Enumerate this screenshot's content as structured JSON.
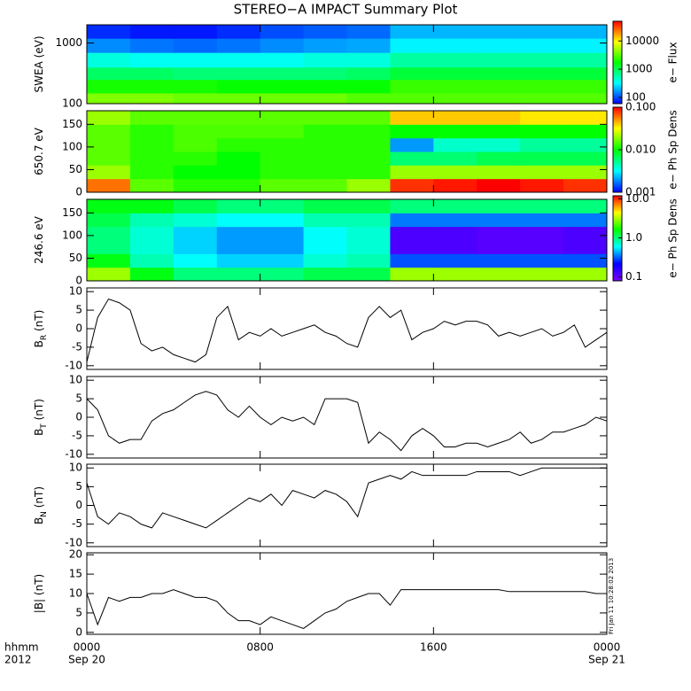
{
  "title": "STEREO−A IMPACT Summary Plot",
  "timestamp": "Fri Jan 11 10:28:02 2013",
  "x_axis": {
    "xlim": [
      0,
      24
    ],
    "xticks": [
      {
        "value": 0,
        "label": "0000"
      },
      {
        "value": 8,
        "label": "0800"
      },
      {
        "value": 16,
        "label": "1600"
      },
      {
        "value": 24,
        "label": "0000"
      }
    ],
    "dates": [
      {
        "value": 0,
        "label": "Sep 20"
      },
      {
        "value": 24,
        "label": "Sep 21"
      }
    ],
    "unit_label": "hhmm",
    "year": "2012"
  },
  "chart_data": [
    {
      "type": "heatmap",
      "y_label": [
        "SWEA (eV)"
      ],
      "log_y": true,
      "ylim": [
        100,
        2000
      ],
      "yticks": [
        100,
        1000
      ],
      "x_edges": [
        0,
        2,
        4,
        6,
        8,
        10,
        12,
        14,
        16,
        18,
        20,
        22,
        24
      ],
      "y_edges": [
        100,
        150,
        250,
        400,
        700,
        1200,
        2000
      ],
      "values": [
        [
          4000,
          4000,
          3500,
          3500,
          3500,
          3500,
          3000,
          3000,
          3000,
          3000,
          3000,
          3000
        ],
        [
          2000,
          2000,
          2000,
          1800,
          1800,
          1800,
          1800,
          2500,
          2500,
          2500,
          2500,
          2500
        ],
        [
          900,
          900,
          800,
          800,
          800,
          800,
          900,
          1200,
          1200,
          1200,
          1200,
          1200
        ],
        [
          400,
          350,
          350,
          350,
          350,
          400,
          400,
          600,
          600,
          600,
          600,
          600
        ],
        [
          150,
          130,
          120,
          130,
          150,
          170,
          180,
          300,
          300,
          300,
          300,
          300
        ],
        [
          80,
          70,
          70,
          80,
          100,
          110,
          120,
          200,
          200,
          200,
          200,
          200
        ]
      ],
      "colormap": [
        "#0000ff",
        "#00ffff",
        "#00ff00",
        "#ffff00",
        "#ff0000"
      ],
      "colorbar": {
        "label": "e− Flux",
        "log": true,
        "lim": [
          60,
          50000
        ],
        "ticks": [
          100,
          1000,
          10000
        ]
      }
    },
    {
      "type": "heatmap",
      "y_label": [
        "650.7 eV"
      ],
      "log_y": false,
      "ylim": [
        0,
        180
      ],
      "yticks": [
        0,
        50,
        100,
        150
      ],
      "x_edges": [
        0,
        2,
        4,
        6,
        8,
        10,
        12,
        14,
        16,
        18,
        20,
        22,
        24
      ],
      "y_edges": [
        0,
        30,
        60,
        90,
        120,
        150,
        180
      ],
      "values": [
        [
          0.06,
          0.015,
          0.012,
          0.012,
          0.015,
          0.015,
          0.02,
          0.08,
          0.09,
          0.1,
          0.09,
          0.08
        ],
        [
          0.02,
          0.012,
          0.01,
          0.01,
          0.012,
          0.012,
          0.012,
          0.02,
          0.02,
          0.02,
          0.02,
          0.02
        ],
        [
          0.015,
          0.012,
          0.012,
          0.01,
          0.012,
          0.012,
          0.012,
          0.006,
          0.006,
          0.007,
          0.007,
          0.007
        ],
        [
          0.015,
          0.012,
          0.014,
          0.012,
          0.012,
          0.012,
          0.012,
          0.002,
          0.004,
          0.004,
          0.005,
          0.005
        ],
        [
          0.015,
          0.012,
          0.014,
          0.014,
          0.014,
          0.012,
          0.012,
          0.01,
          0.01,
          0.01,
          0.01,
          0.01
        ],
        [
          0.02,
          0.015,
          0.015,
          0.015,
          0.015,
          0.015,
          0.015,
          0.04,
          0.04,
          0.04,
          0.035,
          0.035
        ]
      ],
      "colormap": [
        "#0000ff",
        "#00ffff",
        "#00ff00",
        "#ffff00",
        "#ff0000"
      ],
      "colorbar": {
        "label": "e− Ph Sp Dens",
        "log": true,
        "lim": [
          0.001,
          0.1
        ],
        "ticks": [
          {
            "value": 0.001,
            "label": "0.001"
          },
          {
            "value": 0.01,
            "label": "0.010"
          },
          {
            "value": 0.1,
            "label": "0.100"
          }
        ]
      }
    },
    {
      "type": "heatmap",
      "y_label": [
        "246.6 eV"
      ],
      "log_y": false,
      "ylim": [
        0,
        180
      ],
      "yticks": [
        0,
        50,
        100,
        150
      ],
      "x_edges": [
        0,
        2,
        4,
        6,
        8,
        10,
        12,
        14,
        16,
        18,
        20,
        22,
        24
      ],
      "y_edges": [
        0,
        30,
        60,
        90,
        120,
        150,
        180
      ],
      "values": [
        [
          3,
          1.5,
          1,
          1,
          1,
          1.2,
          1.2,
          3,
          3,
          3,
          3,
          3
        ],
        [
          1.5,
          0.8,
          0.6,
          0.5,
          0.5,
          0.7,
          0.8,
          0.3,
          0.3,
          0.3,
          0.3,
          0.3
        ],
        [
          1,
          0.7,
          0.5,
          0.4,
          0.4,
          0.6,
          0.7,
          0.12,
          0.12,
          0.11,
          0.11,
          0.12
        ],
        [
          1,
          0.7,
          0.5,
          0.4,
          0.4,
          0.6,
          0.7,
          0.12,
          0.12,
          0.11,
          0.11,
          0.12
        ],
        [
          1.2,
          0.8,
          0.7,
          0.6,
          0.6,
          0.8,
          0.8,
          0.35,
          0.35,
          0.35,
          0.35,
          0.35
        ],
        [
          1.5,
          1.5,
          1.2,
          1,
          1,
          1.2,
          1.2,
          1,
          1,
          1,
          1,
          1
        ]
      ],
      "colormap": [
        "#7f00ff",
        "#0000ff",
        "#00ffff",
        "#00ff00",
        "#ffff00",
        "#ff0000"
      ],
      "colorbar": {
        "label": "e− Ph Sp Dens",
        "log": true,
        "lim": [
          0.08,
          12
        ],
        "ticks": [
          0.1,
          {
            "value": 1,
            "label": "1.0"
          },
          {
            "value": 10,
            "label": "10.0"
          }
        ]
      }
    },
    {
      "type": "line",
      "y_label": [
        "B",
        "R",
        " (nT)"
      ],
      "ylim": [
        -11,
        11
      ],
      "yticks": [
        -10,
        -5,
        0,
        5,
        10
      ],
      "color": "#000000",
      "x": [
        0,
        0.5,
        1,
        1.5,
        2,
        2.5,
        3,
        3.5,
        4,
        4.5,
        5,
        5.5,
        6,
        6.5,
        7,
        7.5,
        8,
        8.5,
        9,
        9.5,
        10,
        10.5,
        11,
        11.5,
        12,
        12.5,
        13,
        13.5,
        14,
        14.5,
        15,
        15.5,
        16,
        16.5,
        17,
        17.5,
        18,
        18.5,
        19,
        19.5,
        20,
        20.5,
        21,
        21.5,
        22,
        22.5,
        23,
        23.5,
        24
      ],
      "values": [
        -9,
        3,
        8,
        7,
        5,
        -4,
        -6,
        -5,
        -7,
        -8,
        -9,
        -7,
        3,
        6,
        -3,
        -1,
        -2,
        0,
        -2,
        -1,
        0,
        1,
        -1,
        -2,
        -4,
        -5,
        3,
        6,
        3,
        5,
        -3,
        -1,
        0,
        2,
        1,
        2,
        2,
        1,
        -2,
        -1,
        -2,
        -1,
        0,
        -2,
        -1,
        1,
        -5,
        -3,
        -1
      ]
    },
    {
      "type": "line",
      "y_label": [
        "B",
        "T",
        " (nT)"
      ],
      "ylim": [
        -11,
        11
      ],
      "yticks": [
        -10,
        -5,
        0,
        5,
        10
      ],
      "color": "#000000",
      "x": [
        0,
        0.5,
        1,
        1.5,
        2,
        2.5,
        3,
        3.5,
        4,
        4.5,
        5,
        5.5,
        6,
        6.5,
        7,
        7.5,
        8,
        8.5,
        9,
        9.5,
        10,
        10.5,
        11,
        11.5,
        12,
        12.5,
        13,
        13.5,
        14,
        14.5,
        15,
        15.5,
        16,
        16.5,
        17,
        17.5,
        18,
        18.5,
        19,
        19.5,
        20,
        20.5,
        21,
        21.5,
        22,
        22.5,
        23,
        23.5,
        24
      ],
      "values": [
        5,
        2,
        -5,
        -7,
        -6,
        -6,
        -1,
        1,
        2,
        4,
        6,
        7,
        6,
        2,
        0,
        3,
        0,
        -2,
        0,
        -1,
        0,
        -2,
        5,
        5,
        5,
        4,
        -7,
        -4,
        -6,
        -9,
        -5,
        -3,
        -5,
        -8,
        -8,
        -7,
        -7,
        -8,
        -7,
        -6,
        -4,
        -7,
        -6,
        -4,
        -4,
        -3,
        -2,
        0,
        -1
      ]
    },
    {
      "type": "line",
      "y_label": [
        "B",
        "N",
        " (nT)"
      ],
      "ylim": [
        -11,
        11
      ],
      "yticks": [
        -10,
        -5,
        0,
        5,
        10
      ],
      "color": "#000000",
      "x": [
        0,
        0.5,
        1,
        1.5,
        2,
        2.5,
        3,
        3.5,
        4,
        4.5,
        5,
        5.5,
        6,
        6.5,
        7,
        7.5,
        8,
        8.5,
        9,
        9.5,
        10,
        10.5,
        11,
        11.5,
        12,
        12.5,
        13,
        13.5,
        14,
        14.5,
        15,
        15.5,
        16,
        16.5,
        17,
        17.5,
        18,
        18.5,
        19,
        19.5,
        20,
        20.5,
        21,
        21.5,
        22,
        22.5,
        23,
        23.5,
        24
      ],
      "values": [
        6,
        -3,
        -5,
        -2,
        -3,
        -5,
        -6,
        -2,
        -3,
        -4,
        -5,
        -6,
        -4,
        -2,
        0,
        2,
        1,
        3,
        0,
        4,
        3,
        2,
        4,
        3,
        1,
        -3,
        6,
        7,
        8,
        7,
        9,
        8,
        8,
        8,
        8,
        8,
        9,
        9,
        9,
        9,
        8,
        9,
        10,
        10,
        10,
        10,
        10,
        10,
        10
      ]
    },
    {
      "type": "line",
      "y_label": [
        "|B| (nT)"
      ],
      "ylim": [
        -0.5,
        20.5
      ],
      "yticks": [
        0,
        5,
        10,
        15,
        20
      ],
      "color": "#000000",
      "x": [
        0,
        0.5,
        1,
        1.5,
        2,
        2.5,
        3,
        3.5,
        4,
        4.5,
        5,
        5.5,
        6,
        6.5,
        7,
        7.5,
        8,
        8.5,
        9,
        9.5,
        10,
        10.5,
        11,
        11.5,
        12,
        12.5,
        13,
        13.5,
        14,
        14.5,
        15,
        15.5,
        16,
        16.5,
        17,
        17.5,
        18,
        18.5,
        19,
        19.5,
        20,
        20.5,
        21,
        21.5,
        22,
        22.5,
        23,
        23.5,
        24
      ],
      "values": [
        10,
        2,
        9,
        8,
        9,
        9,
        10,
        10,
        11,
        10,
        9,
        9,
        8,
        5,
        3,
        3,
        2,
        4,
        3,
        2,
        1,
        3,
        5,
        6,
        8,
        9,
        10,
        10,
        7,
        11,
        11,
        11,
        11,
        11,
        11,
        11,
        11,
        11,
        11,
        10.5,
        10.5,
        10.5,
        10.5,
        10.5,
        10.5,
        10.5,
        10.5,
        10,
        10
      ]
    }
  ]
}
